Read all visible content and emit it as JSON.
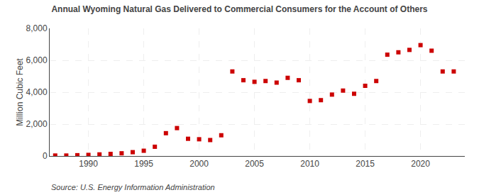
{
  "chart_data": {
    "type": "scatter",
    "title": "Annual Wyoming Natural Gas Delivered to Commercial Consumers for the Account of Others",
    "y_label": "Million Cubic Feet",
    "annotations": [
      "Source: U.S. Energy Information Administration"
    ],
    "x": [
      1987,
      1988,
      1989,
      1990,
      1991,
      1992,
      1993,
      1994,
      1995,
      1996,
      1997,
      1998,
      1999,
      2000,
      2001,
      2002,
      2003,
      2004,
      2005,
      2006,
      2007,
      2008,
      2009,
      2010,
      2011,
      2012,
      2013,
      2014,
      2015,
      2016,
      2017,
      2018,
      2019,
      2020,
      2021,
      2022,
      2023
    ],
    "values": [
      30,
      30,
      50,
      70,
      100,
      130,
      170,
      240,
      330,
      580,
      1430,
      1750,
      1080,
      1050,
      1000,
      1300,
      5300,
      4750,
      4650,
      4700,
      4600,
      4900,
      4750,
      3450,
      3500,
      3850,
      4100,
      3900,
      4400,
      4700,
      6350,
      6500,
      6650,
      6950,
      6600,
      5300,
      5300
    ],
    "color": "#cc0000",
    "marker": "square",
    "xlim": [
      1986.5,
      2024
    ],
    "xticks": [
      1990,
      1995,
      2000,
      2005,
      2010,
      2015,
      2020
    ],
    "ylim": [
      0,
      8000
    ],
    "yticks": [
      0,
      {
        "value": 2000,
        "label": "2,000"
      },
      {
        "value": 4000,
        "label": "4,000"
      },
      {
        "value": 6000,
        "label": "6,000"
      },
      {
        "value": 8000,
        "label": "8,000"
      }
    ],
    "grid": true
  }
}
